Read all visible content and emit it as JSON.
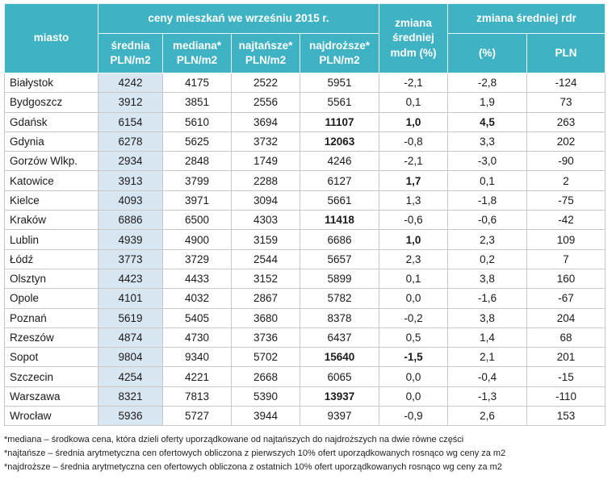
{
  "header": {
    "city": "miasto",
    "group_prices": "ceny mieszkań we wrześniu 2015 r.",
    "avg": "średnia PLN/m2",
    "median": "mediana* PLN/m2",
    "cheapest": "najtańsze* PLN/m2",
    "most_expensive": "najdroższe* PLN/m2",
    "change_mom": "zmiana średniej mdm (%)",
    "group_yoy": "zmiana średniej rdr",
    "yoy_pct": "(%)",
    "yoy_pln": "PLN"
  },
  "rows": [
    {
      "city": "Białystok",
      "avg": "4242",
      "median": "4175",
      "cheap": "2522",
      "exp": "5951",
      "mom": "-2,1",
      "yoy_pct": "-2,8",
      "yoy_pln": "-124"
    },
    {
      "city": "Bydgoszcz",
      "avg": "3912",
      "median": "3851",
      "cheap": "2556",
      "exp": "5561",
      "mom": "0,1",
      "yoy_pct": "1,9",
      "yoy_pln": "73"
    },
    {
      "city": "Gdańsk",
      "avg": "6154",
      "median": "5610",
      "cheap": "3694",
      "exp": "11107",
      "mom": "1,0",
      "yoy_pct": "4,5",
      "yoy_pln": "263"
    },
    {
      "city": "Gdynia",
      "avg": "6278",
      "median": "5625",
      "cheap": "3732",
      "exp": "12063",
      "mom": "-0,8",
      "yoy_pct": "3,3",
      "yoy_pln": "202"
    },
    {
      "city": "Gorzów Wlkp.",
      "avg": "2934",
      "median": "2848",
      "cheap": "1749",
      "exp": "4246",
      "mom": "-2,1",
      "yoy_pct": "-3,0",
      "yoy_pln": "-90"
    },
    {
      "city": "Katowice",
      "avg": "3913",
      "median": "3799",
      "cheap": "2288",
      "exp": "6127",
      "mom": "1,7",
      "yoy_pct": "0,1",
      "yoy_pln": "2"
    },
    {
      "city": "Kielce",
      "avg": "4093",
      "median": "3971",
      "cheap": "3094",
      "exp": "5661",
      "mom": "1,3",
      "yoy_pct": "-1,8",
      "yoy_pln": "-75"
    },
    {
      "city": "Kraków",
      "avg": "6886",
      "median": "6500",
      "cheap": "4303",
      "exp": "11418",
      "mom": "-0,6",
      "yoy_pct": "-0,6",
      "yoy_pln": "-42"
    },
    {
      "city": "Lublin",
      "avg": "4939",
      "median": "4900",
      "cheap": "3159",
      "exp": "6686",
      "mom": "1,0",
      "yoy_pct": "2,3",
      "yoy_pln": "109"
    },
    {
      "city": "Łódź",
      "avg": "3773",
      "median": "3729",
      "cheap": "2544",
      "exp": "5657",
      "mom": "2,3",
      "yoy_pct": "0,2",
      "yoy_pln": "7"
    },
    {
      "city": "Olsztyn",
      "avg": "4423",
      "median": "4433",
      "cheap": "3152",
      "exp": "5899",
      "mom": "0,1",
      "yoy_pct": "3,8",
      "yoy_pln": "160"
    },
    {
      "city": "Opole",
      "avg": "4101",
      "median": "4032",
      "cheap": "2867",
      "exp": "5782",
      "mom": "0,0",
      "yoy_pct": "-1,6",
      "yoy_pln": "-67"
    },
    {
      "city": "Poznań",
      "avg": "5619",
      "median": "5405",
      "cheap": "3680",
      "exp": "8378",
      "mom": "-0,2",
      "yoy_pct": "3,8",
      "yoy_pln": "204"
    },
    {
      "city": "Rzeszów",
      "avg": "4874",
      "median": "4730",
      "cheap": "3736",
      "exp": "6437",
      "mom": "0,5",
      "yoy_pct": "1,4",
      "yoy_pln": "68"
    },
    {
      "city": "Sopot",
      "avg": "9804",
      "median": "9340",
      "cheap": "5702",
      "exp": "15640",
      "mom": "-1,5",
      "yoy_pct": "2,1",
      "yoy_pln": "201"
    },
    {
      "city": "Szczecin",
      "avg": "4254",
      "median": "4221",
      "cheap": "2668",
      "exp": "6065",
      "mom": "0,0",
      "yoy_pct": "-0,4",
      "yoy_pln": "-15"
    },
    {
      "city": "Warszawa",
      "avg": "8321",
      "median": "7813",
      "cheap": "5390",
      "exp": "13937",
      "mom": "0,0",
      "yoy_pct": "-1,3",
      "yoy_pln": "-110"
    },
    {
      "city": "Wrocław",
      "avg": "5936",
      "median": "5727",
      "cheap": "3944",
      "exp": "9397",
      "mom": "-0,9",
      "yoy_pct": "2,6",
      "yoy_pln": "153"
    }
  ],
  "bold_cells": {
    "Gdańsk": [
      "exp",
      "mom",
      "yoy_pct"
    ],
    "Gdynia": [
      "exp"
    ],
    "Katowice": [
      "mom"
    ],
    "Kraków": [
      "exp"
    ],
    "Lublin": [
      "mom"
    ],
    "Sopot": [
      "exp",
      "mom"
    ],
    "Warszawa": [
      "exp"
    ]
  },
  "notes": [
    "*mediana – środkowa cena, która dzieli oferty uporządkowane od najtańszych do najdroższych na dwie równe części",
    "*najtańsze – średnia arytmetyczna cen ofertowych obliczona z pierwszych 10% ofert uporządkowanych rosnąco wg ceny za m2",
    "*najdroższe – średnia arytmetyczna cen ofertowych obliczona z ostatnich 10% ofert uporządkowanych rosnąco wg ceny za m2"
  ],
  "colors": {
    "header": "#3fb2c4",
    "avg_column": "#d8e6f2"
  }
}
